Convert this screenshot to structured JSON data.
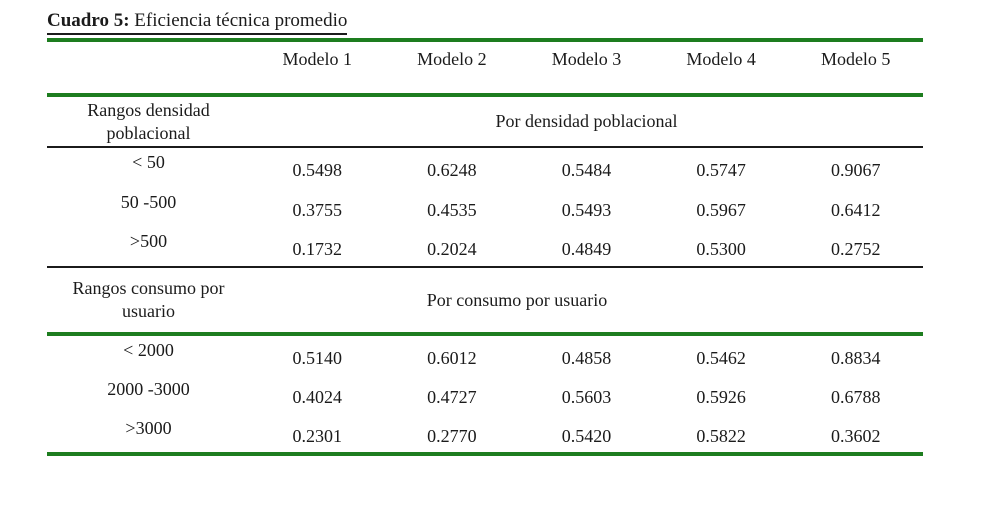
{
  "title": {
    "label": "Cuadro 5:",
    "text": " Eficiencia técnica promedio"
  },
  "columns": [
    "Modelo 1",
    "Modelo 2",
    "Modelo 3",
    "Modelo 4",
    "Modelo 5"
  ],
  "sections": [
    {
      "row_header": "Rangos densidad poblacional",
      "span_header": "Por densidad poblacional",
      "rows": [
        {
          "label": "< 50",
          "values": [
            "0.5498",
            "0.6248",
            "0.5484",
            "0.5747",
            "0.9067"
          ]
        },
        {
          "label": "50 -500",
          "values": [
            "0.3755",
            "0.4535",
            "0.5493",
            "0.5967",
            "0.6412"
          ]
        },
        {
          "label": ">500",
          "values": [
            "0.1732",
            "0.2024",
            "0.4849",
            "0.5300",
            "0.2752"
          ]
        }
      ]
    },
    {
      "row_header": "Rangos consumo por usuario",
      "span_header": "Por consumo por usuario",
      "rows": [
        {
          "label": "< 2000",
          "values": [
            "0.5140",
            "0.6012",
            "0.4858",
            "0.5462",
            "0.8834"
          ]
        },
        {
          "label": "2000 -3000",
          "values": [
            "0.4024",
            "0.4727",
            "0.5603",
            "0.5926",
            "0.6788"
          ]
        },
        {
          "label": ">3000",
          "values": [
            "0.2301",
            "0.2770",
            "0.5420",
            "0.5822",
            "0.3602"
          ]
        }
      ]
    }
  ],
  "colors": {
    "rule_green": "#1d7d1f",
    "rule_black": "#1b1b1b",
    "text": "#1b1b1b",
    "background": "#ffffff"
  }
}
